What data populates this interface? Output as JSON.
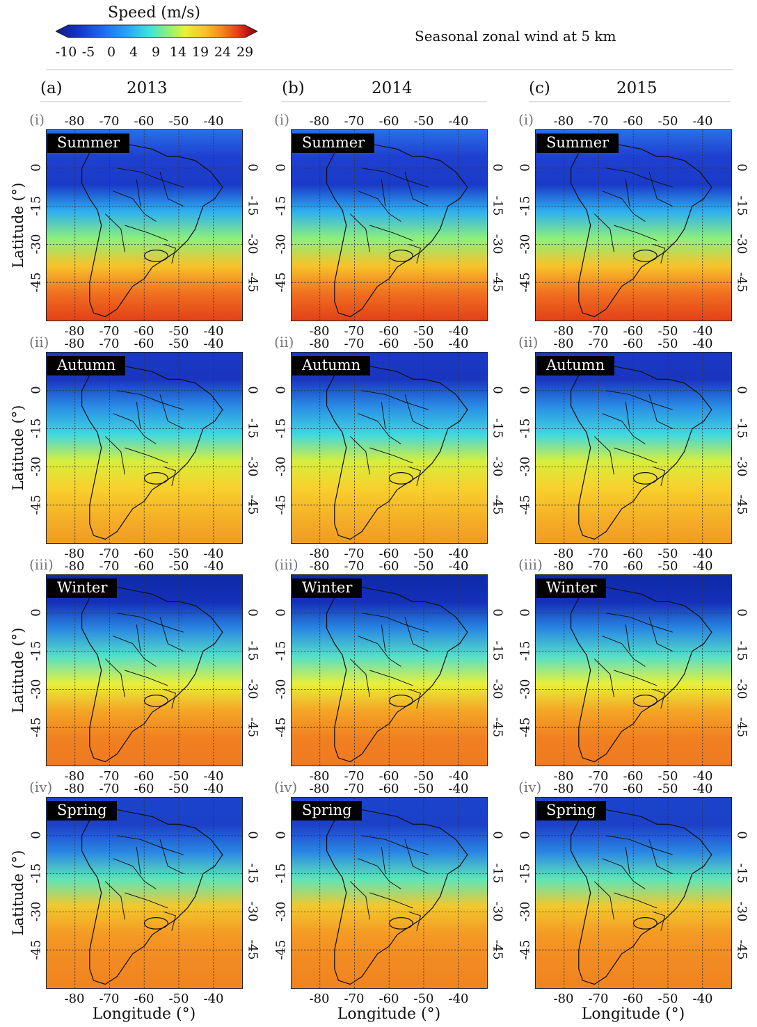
{
  "colorbar": {
    "title": "Speed (m/s)",
    "ticks": [
      "-10",
      "-5",
      "0",
      "4",
      "9",
      "14",
      "19",
      "24",
      "29"
    ],
    "colors": [
      "#0a1a8c",
      "#1537c8",
      "#1f6df0",
      "#2ba6f5",
      "#3fe0e0",
      "#8ef07a",
      "#e8f03a",
      "#f8c22a",
      "#f58a1e",
      "#e8401a",
      "#b51010",
      "#7a0808"
    ]
  },
  "main_title": "Seasonal zonal wind at 5 km",
  "columns": [
    {
      "letter": "(a)",
      "year": "2013"
    },
    {
      "letter": "(b)",
      "year": "2014"
    },
    {
      "letter": "(c)",
      "year": "2015"
    }
  ],
  "rows": [
    {
      "roman": "(i)",
      "season": "Summer"
    },
    {
      "roman": "(ii)",
      "season": "Autumn"
    },
    {
      "roman": "(iii)",
      "season": "Winter"
    },
    {
      "roman": "(iv)",
      "season": "Spring"
    }
  ],
  "lon_ticks": [
    "-80",
    "-70",
    "-60",
    "-50",
    "-40"
  ],
  "lat_ticks": [
    "0",
    "-15",
    "-30",
    "-45"
  ],
  "axis_labels": {
    "latitude": "Latitude (°)",
    "longitude": "Longitude (°)"
  }
}
